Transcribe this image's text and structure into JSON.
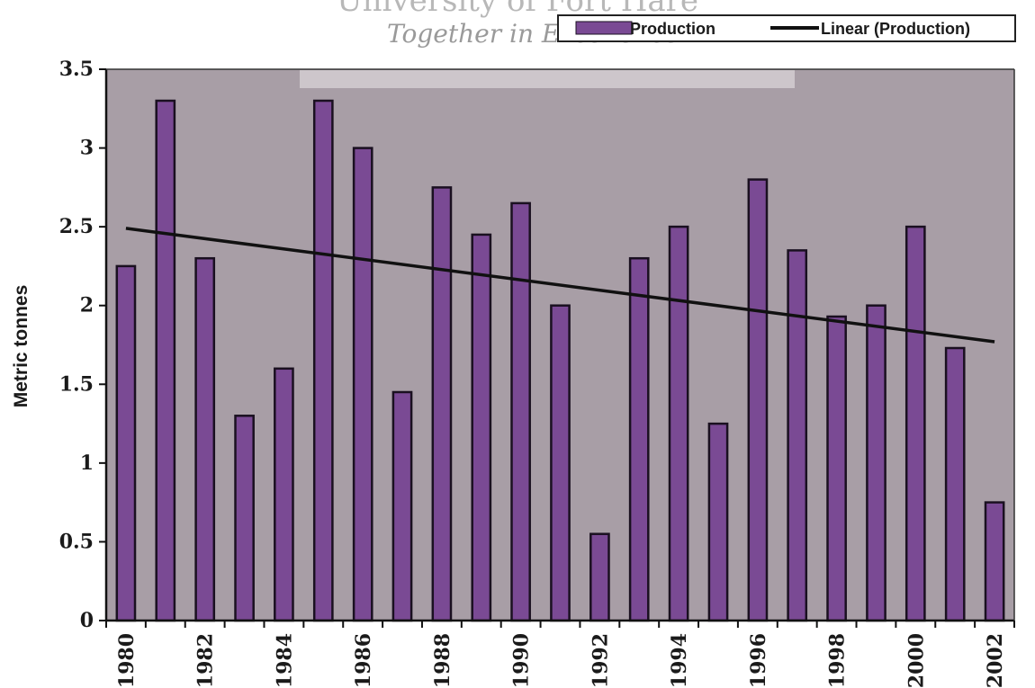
{
  "watermark": {
    "title": "University of Fort Hare",
    "subtitle": "Together in Excellence"
  },
  "colors": {
    "plot_bg": "#a89ea6",
    "bar_fill": "#7a4a94",
    "bar_stroke": "#1a1020",
    "trend": "#111111"
  },
  "chart_data": {
    "type": "bar",
    "title": "",
    "xlabel": "",
    "ylabel": "Metric tonnes",
    "ylim": [
      0,
      3.5
    ],
    "yticks": [
      "0",
      "0.5",
      "1",
      "1.5",
      "2",
      "2.5",
      "3",
      "3.5"
    ],
    "categories": [
      "1980",
      "1981",
      "1982",
      "1983",
      "1984",
      "1985",
      "1986",
      "1987",
      "1988",
      "1989",
      "1990",
      "1991",
      "1992",
      "1993",
      "1994",
      "1995",
      "1996",
      "1997",
      "1998",
      "1999",
      "2000",
      "2001",
      "2002"
    ],
    "xtick_labels": [
      "1980",
      "1982",
      "1984",
      "1986",
      "1988",
      "1990",
      "1992",
      "1994",
      "1996",
      "1998",
      "2000",
      "2002"
    ],
    "series": [
      {
        "name": "Production",
        "values": [
          2.25,
          3.3,
          2.3,
          1.3,
          1.6,
          3.3,
          3.0,
          1.45,
          2.75,
          2.45,
          2.65,
          2.0,
          0.55,
          2.3,
          2.5,
          1.25,
          2.8,
          2.35,
          1.93,
          2.0,
          2.5,
          1.73,
          0.75
        ]
      }
    ],
    "trendline": {
      "name": "Linear (Production)",
      "start": 2.49,
      "end": 1.77
    },
    "legend": {
      "position": "top-right",
      "entries": [
        "Production",
        "Linear (Production)"
      ]
    },
    "grid": false
  }
}
